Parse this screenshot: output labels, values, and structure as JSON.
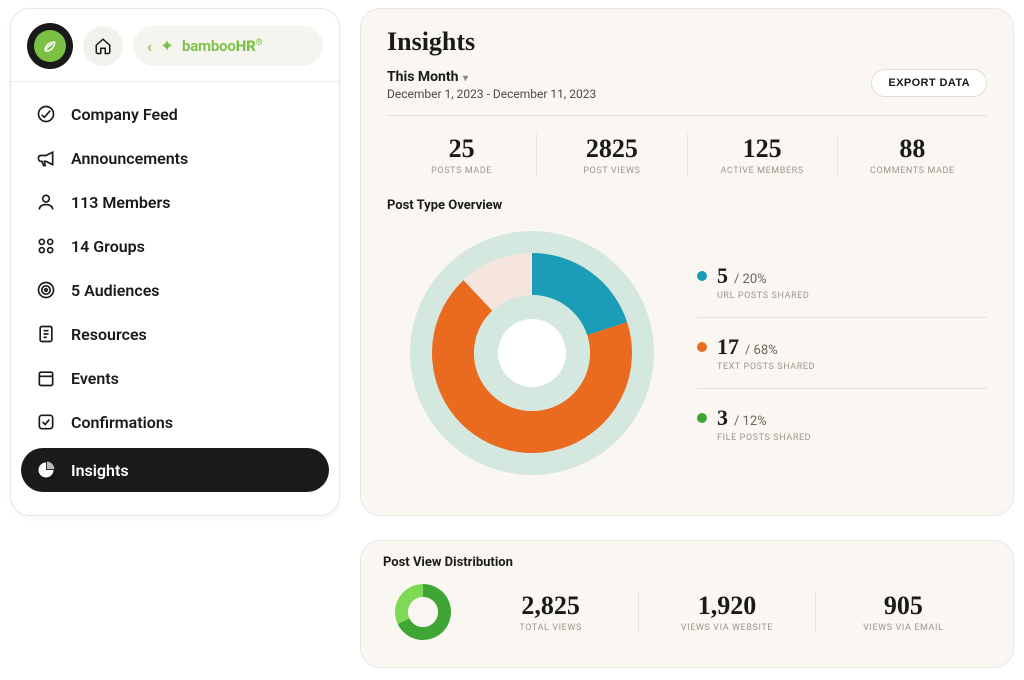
{
  "colors": {
    "accent_green": "#7bc043",
    "dark": "#1a1a1a",
    "card_bg": "#faf7f2",
    "border": "#eae7e2",
    "divider": "#e7e2da",
    "muted_text": "#9b968c",
    "body_text": "#4a4a4a"
  },
  "header": {
    "brand_prefix": "bamboo",
    "brand_suffix": "HR"
  },
  "sidebar": {
    "items": [
      {
        "label": "Company Feed",
        "icon": "feed-icon"
      },
      {
        "label": "Announcements",
        "icon": "megaphone-icon"
      },
      {
        "label": "113 Members",
        "icon": "person-icon"
      },
      {
        "label": "14 Groups",
        "icon": "groups-icon"
      },
      {
        "label": "5 Audiences",
        "icon": "target-icon"
      },
      {
        "label": "Resources",
        "icon": "document-icon"
      },
      {
        "label": "Events",
        "icon": "calendar-icon"
      },
      {
        "label": "Confirmations",
        "icon": "check-square-icon"
      },
      {
        "label": "Insights",
        "icon": "pie-icon",
        "active": true
      }
    ]
  },
  "page": {
    "title": "Insights",
    "period_label": "This Month",
    "period_range": "December 1, 2023 - December 11, 2023",
    "export_label": "EXPORT DATA"
  },
  "kpis": [
    {
      "value": "25",
      "label": "POSTS MADE"
    },
    {
      "value": "2825",
      "label": "POST VIEWS"
    },
    {
      "value": "125",
      "label": "ACTIVE MEMBERS"
    },
    {
      "value": "88",
      "label": "COMMENTS MADE"
    }
  ],
  "post_type_overview": {
    "title": "Post Type Overview",
    "chart": {
      "type": "donut",
      "outer_ring_color": "#d5e8e0",
      "background_color": "#faf7f2",
      "gap_pct": 2,
      "slices": [
        {
          "key": "url",
          "pct": 20,
          "color": "#1b9cb7"
        },
        {
          "key": "text",
          "pct": 68,
          "color": "#ea6b1f"
        },
        {
          "key": "file",
          "pct": 12,
          "color": "#f6e5dc"
        }
      ]
    },
    "legend": [
      {
        "count": "5",
        "pct": "/ 20%",
        "label": "URL POSTS SHARED",
        "color": "#1b9cb7"
      },
      {
        "count": "17",
        "pct": "/ 68%",
        "label": "TEXT POSTS SHARED",
        "color": "#ea6b1f"
      },
      {
        "count": "3",
        "pct": "/ 12%",
        "label": "FILE POSTS SHARED",
        "color": "#3fa535"
      }
    ]
  },
  "post_view_distribution": {
    "title": "Post View Distribution",
    "chart": {
      "type": "donut",
      "slices": [
        {
          "key": "website",
          "value": 1920,
          "color": "#3fa535"
        },
        {
          "key": "email",
          "value": 905,
          "color": "#7ed957"
        }
      ]
    },
    "kpis": [
      {
        "value": "2,825",
        "label": "TOTAL VIEWS"
      },
      {
        "value": "1,920",
        "label": "VIEWS VIA WEBSITE"
      },
      {
        "value": "905",
        "label": "VIEWS VIA EMAIL"
      }
    ]
  }
}
